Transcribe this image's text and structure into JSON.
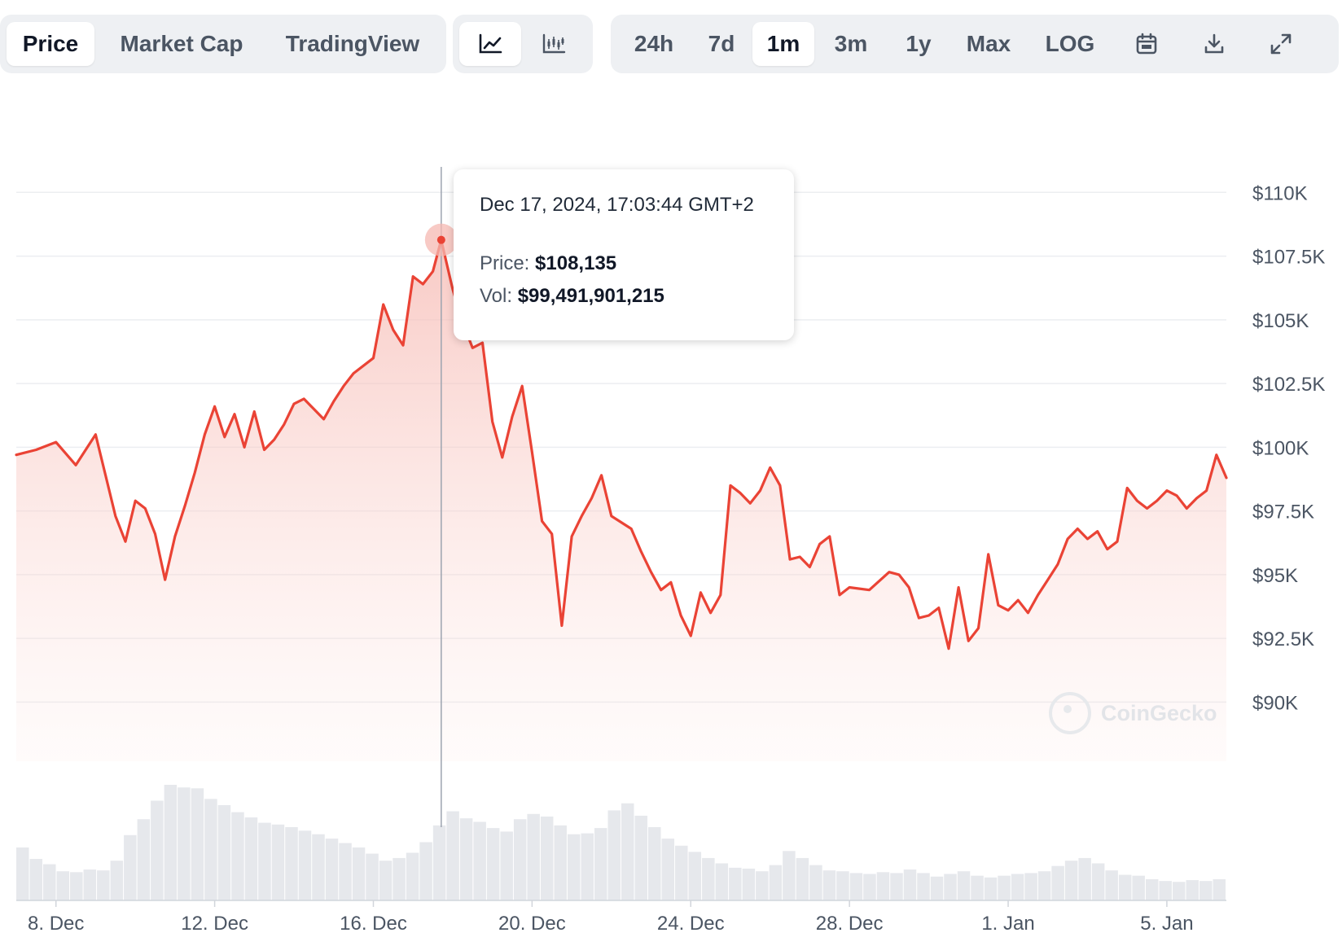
{
  "toolbar": {
    "metric_tabs": [
      {
        "label": "Price",
        "active": true
      },
      {
        "label": "Market Cap",
        "active": false
      },
      {
        "label": "TradingView",
        "active": false
      }
    ],
    "chart_type_buttons": [
      {
        "icon": "line-chart-icon",
        "active": true
      },
      {
        "icon": "candlestick-chart-icon",
        "active": false
      }
    ],
    "range_tabs": [
      {
        "label": "24h",
        "active": false
      },
      {
        "label": "7d",
        "active": false
      },
      {
        "label": "1m",
        "active": true
      },
      {
        "label": "3m",
        "active": false
      },
      {
        "label": "1y",
        "active": false
      },
      {
        "label": "Max",
        "active": false
      },
      {
        "label": "LOG",
        "active": false
      }
    ],
    "action_icons": [
      "calendar-icon",
      "download-icon",
      "fullscreen-icon"
    ]
  },
  "tooltip": {
    "date": "Dec 17, 2024, 17:03:44 GMT+2",
    "price_label": "Price:",
    "price_value": "$108,135",
    "vol_label": "Vol:",
    "vol_value": "$99,491,901,215"
  },
  "watermark": "CoinGecko",
  "colors": {
    "line": "#ea4335",
    "fill": "#f9c9c4",
    "grid": "#eceef1",
    "volume": "#e6e8ec",
    "accent": "#ea4335"
  },
  "chart_data": {
    "type": "line",
    "title": "",
    "xlabel": "",
    "ylabel": "",
    "x_range": [
      "2024-12-07",
      "2025-01-06"
    ],
    "ylim": [
      88000,
      111000
    ],
    "y_ticks": [
      {
        "value": 110000,
        "label": "$110K"
      },
      {
        "value": 107500,
        "label": "$107.5K"
      },
      {
        "value": 105000,
        "label": "$105K"
      },
      {
        "value": 102500,
        "label": "$102.5K"
      },
      {
        "value": 100000,
        "label": "$100K"
      },
      {
        "value": 97500,
        "label": "$97.5K"
      },
      {
        "value": 95000,
        "label": "$95K"
      },
      {
        "value": 92500,
        "label": "$92.5K"
      },
      {
        "value": 90000,
        "label": "$90K"
      }
    ],
    "x_ticks": [
      {
        "date": "2024-12-08",
        "label": "8. Dec"
      },
      {
        "date": "2024-12-12",
        "label": "12. Dec"
      },
      {
        "date": "2024-12-16",
        "label": "16. Dec"
      },
      {
        "date": "2024-12-20",
        "label": "20. Dec"
      },
      {
        "date": "2024-12-24",
        "label": "24. Dec"
      },
      {
        "date": "2024-12-28",
        "label": "28. Dec"
      },
      {
        "date": "2025-01-01",
        "label": "1. Jan"
      },
      {
        "date": "2025-01-05",
        "label": "5. Jan"
      }
    ],
    "highlight": {
      "date": "2024-12-17T17:03:44",
      "price": 108135
    },
    "grid": true,
    "series": [
      {
        "points": [
          [
            "2024-12-07T00:00",
            99700
          ],
          [
            "2024-12-07T12:00",
            99900
          ],
          [
            "2024-12-08T00:00",
            100200
          ],
          [
            "2024-12-08T12:00",
            99300
          ],
          [
            "2024-12-09T00:00",
            100500
          ],
          [
            "2024-12-09T06:00",
            98900
          ],
          [
            "2024-12-09T12:00",
            97300
          ],
          [
            "2024-12-09T18:00",
            96300
          ],
          [
            "2024-12-10T00:00",
            97900
          ],
          [
            "2024-12-10T06:00",
            97600
          ],
          [
            "2024-12-10T12:00",
            96600
          ],
          [
            "2024-12-10T18:00",
            94800
          ],
          [
            "2024-12-11T00:00",
            96500
          ],
          [
            "2024-12-11T06:00",
            97700
          ],
          [
            "2024-12-11T12:00",
            99000
          ],
          [
            "2024-12-11T18:00",
            100500
          ],
          [
            "2024-12-12T00:00",
            101600
          ],
          [
            "2024-12-12T06:00",
            100400
          ],
          [
            "2024-12-12T12:00",
            101300
          ],
          [
            "2024-12-12T18:00",
            100000
          ],
          [
            "2024-12-13T00:00",
            101400
          ],
          [
            "2024-12-13T06:00",
            99900
          ],
          [
            "2024-12-13T12:00",
            100300
          ],
          [
            "2024-12-13T18:00",
            100900
          ],
          [
            "2024-12-14T00:00",
            101700
          ],
          [
            "2024-12-14T06:00",
            101900
          ],
          [
            "2024-12-14T12:00",
            101500
          ],
          [
            "2024-12-14T18:00",
            101100
          ],
          [
            "2024-12-15T00:00",
            101800
          ],
          [
            "2024-12-15T06:00",
            102400
          ],
          [
            "2024-12-15T12:00",
            102900
          ],
          [
            "2024-12-16T00:00",
            103500
          ],
          [
            "2024-12-16T06:00",
            105600
          ],
          [
            "2024-12-16T12:00",
            104600
          ],
          [
            "2024-12-16T18:00",
            104000
          ],
          [
            "2024-12-17T00:00",
            106700
          ],
          [
            "2024-12-17T06:00",
            106400
          ],
          [
            "2024-12-17T12:00",
            106900
          ],
          [
            "2024-12-17T17:03",
            108135
          ],
          [
            "2024-12-18T00:00",
            106200
          ],
          [
            "2024-12-18T06:00",
            104900
          ],
          [
            "2024-12-18T12:00",
            103900
          ],
          [
            "2024-12-18T18:00",
            104100
          ],
          [
            "2024-12-19T00:00",
            101000
          ],
          [
            "2024-12-19T06:00",
            99600
          ],
          [
            "2024-12-19T12:00",
            101200
          ],
          [
            "2024-12-19T18:00",
            102400
          ],
          [
            "2024-12-20T00:00",
            99800
          ],
          [
            "2024-12-20T06:00",
            97100
          ],
          [
            "2024-12-20T12:00",
            96600
          ],
          [
            "2024-12-20T18:00",
            93000
          ],
          [
            "2024-12-21T00:00",
            96500
          ],
          [
            "2024-12-21T06:00",
            97300
          ],
          [
            "2024-12-21T12:00",
            98000
          ],
          [
            "2024-12-21T18:00",
            98900
          ],
          [
            "2024-12-22T00:00",
            97300
          ],
          [
            "2024-12-22T12:00",
            96800
          ],
          [
            "2024-12-22T18:00",
            95900
          ],
          [
            "2024-12-23T00:00",
            95100
          ],
          [
            "2024-12-23T06:00",
            94400
          ],
          [
            "2024-12-23T12:00",
            94700
          ],
          [
            "2024-12-23T18:00",
            93400
          ],
          [
            "2024-12-24T00:00",
            92600
          ],
          [
            "2024-12-24T06:00",
            94300
          ],
          [
            "2024-12-24T12:00",
            93500
          ],
          [
            "2024-12-24T18:00",
            94200
          ],
          [
            "2024-12-25T00:00",
            98500
          ],
          [
            "2024-12-25T06:00",
            98200
          ],
          [
            "2024-12-25T12:00",
            97800
          ],
          [
            "2024-12-25T18:00",
            98300
          ],
          [
            "2024-12-26T00:00",
            99200
          ],
          [
            "2024-12-26T06:00",
            98500
          ],
          [
            "2024-12-26T12:00",
            95600
          ],
          [
            "2024-12-26T18:00",
            95700
          ],
          [
            "2024-12-27T00:00",
            95300
          ],
          [
            "2024-12-27T06:00",
            96200
          ],
          [
            "2024-12-27T12:00",
            96500
          ],
          [
            "2024-12-27T18:00",
            94200
          ],
          [
            "2024-12-28T00:00",
            94500
          ],
          [
            "2024-12-28T12:00",
            94400
          ],
          [
            "2024-12-29T00:00",
            95100
          ],
          [
            "2024-12-29T06:00",
            95000
          ],
          [
            "2024-12-29T12:00",
            94500
          ],
          [
            "2024-12-29T18:00",
            93300
          ],
          [
            "2024-12-30T00:00",
            93400
          ],
          [
            "2024-12-30T06:00",
            93700
          ],
          [
            "2024-12-30T12:00",
            92100
          ],
          [
            "2024-12-30T18:00",
            94500
          ],
          [
            "2024-12-31T00:00",
            92400
          ],
          [
            "2024-12-31T06:00",
            92900
          ],
          [
            "2024-12-31T12:00",
            95800
          ],
          [
            "2024-12-31T18:00",
            93800
          ],
          [
            "2025-01-01T00:00",
            93600
          ],
          [
            "2025-01-01T06:00",
            94000
          ],
          [
            "2025-01-01T12:00",
            93500
          ],
          [
            "2025-01-01T18:00",
            94200
          ],
          [
            "2025-01-02T00:00",
            94800
          ],
          [
            "2025-01-02T06:00",
            95400
          ],
          [
            "2025-01-02T12:00",
            96400
          ],
          [
            "2025-01-02T18:00",
            96800
          ],
          [
            "2025-01-03T00:00",
            96400
          ],
          [
            "2025-01-03T06:00",
            96700
          ],
          [
            "2025-01-03T12:00",
            96000
          ],
          [
            "2025-01-03T18:00",
            96300
          ],
          [
            "2025-01-04T00:00",
            98400
          ],
          [
            "2025-01-04T06:00",
            97900
          ],
          [
            "2025-01-04T12:00",
            97600
          ],
          [
            "2025-01-04T18:00",
            97900
          ],
          [
            "2025-01-05T00:00",
            98300
          ],
          [
            "2025-01-05T06:00",
            98100
          ],
          [
            "2025-01-05T12:00",
            97600
          ],
          [
            "2025-01-05T18:00",
            98000
          ],
          [
            "2025-01-06T00:00",
            98300
          ],
          [
            "2025-01-06T06:00",
            99700
          ],
          [
            "2025-01-06T12:00",
            98800
          ]
        ]
      }
    ],
    "volume": {
      "x_range": [
        "2024-12-07",
        "2025-01-06"
      ],
      "values": [
        60,
        47,
        41,
        33,
        32,
        35,
        34,
        45,
        74,
        92,
        113,
        131,
        128,
        127,
        115,
        108,
        100,
        94,
        88,
        86,
        83,
        79,
        75,
        70,
        65,
        60,
        53,
        45,
        48,
        54,
        66,
        85,
        101,
        93,
        89,
        82,
        78,
        92,
        98,
        95,
        85,
        75,
        76,
        82,
        102,
        110,
        96,
        83,
        70,
        62,
        55,
        48,
        42,
        37,
        36,
        33,
        40,
        56,
        48,
        40,
        34,
        33,
        31,
        30,
        32,
        31,
        35,
        31,
        27,
        30,
        33,
        28,
        26,
        28,
        30,
        31,
        33,
        39,
        45,
        48,
        42,
        34,
        29,
        28,
        24,
        22,
        21,
        23,
        22,
        24
      ]
    }
  }
}
